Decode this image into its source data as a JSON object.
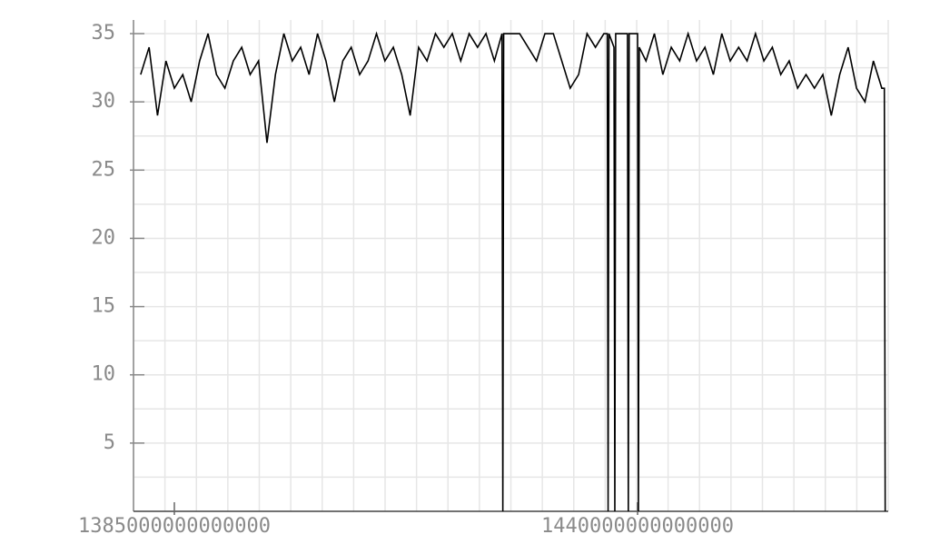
{
  "chart_data": {
    "type": "line",
    "color": "#000000",
    "grid": true,
    "x": [
      1381000000000000,
      1382000000000000,
      1383000000000000,
      1384000000000000,
      1385000000000000,
      1386000000000000,
      1387000000000000,
      1388000000000000,
      1389000000000000,
      1390000000000000,
      1391000000000000,
      1392000000000000,
      1393000000000000,
      1394000000000000,
      1395000000000000,
      1396000000000000,
      1397000000000000,
      1398000000000000,
      1399000000000000,
      1400000000000000,
      1401000000000000,
      1402000000000000,
      1403000000000000,
      1404000000000000,
      1405000000000000,
      1406000000000000,
      1407000000000000,
      1408000000000000,
      1409000000000000,
      1410000000000000,
      1411000000000000,
      1412000000000000,
      1413000000000000,
      1414000000000000,
      1415000000000000,
      1416000000000000,
      1417000000000000,
      1418000000000000,
      1419000000000000,
      1420000000000000,
      1421000000000000,
      1422000000000000,
      1423000000000000,
      1423900000000000,
      1424000000000000,
      1424100000000000,
      1425000000000000,
      1426000000000000,
      1427000000000000,
      1428000000000000,
      1429000000000000,
      1430000000000000,
      1431000000000000,
      1432000000000000,
      1433000000000000,
      1434000000000000,
      1435000000000000,
      1436000000000000,
      1436400000000000,
      1436500000000000,
      1436600000000000,
      1437200000000000,
      1437300000000000,
      1437400000000000,
      1438000000000000,
      1438800000000000,
      1438900000000000,
      1439000000000000,
      1440000000000000,
      1440100000000000,
      1440200000000000,
      1441000000000000,
      1442000000000000,
      1443000000000000,
      1444000000000000,
      1445000000000000,
      1446000000000000,
      1447000000000000,
      1448000000000000,
      1449000000000000,
      1450000000000000,
      1451000000000000,
      1452000000000000,
      1453000000000000,
      1454000000000000,
      1455000000000000,
      1456000000000000,
      1457000000000000,
      1458000000000000,
      1459000000000000,
      1460000000000000,
      1461000000000000,
      1462000000000000,
      1463000000000000,
      1464000000000000,
      1465000000000000,
      1466000000000000,
      1467000000000000,
      1468000000000000,
      1469000000000000,
      1469300000000000,
      1469400000000000
    ],
    "values": [
      32,
      34,
      29,
      33,
      31,
      32,
      30,
      33,
      35,
      32,
      31,
      33,
      34,
      32,
      33,
      27,
      32,
      35,
      33,
      34,
      32,
      35,
      33,
      30,
      33,
      34,
      32,
      33,
      35,
      33,
      34,
      32,
      29,
      34,
      33,
      35,
      34,
      35,
      33,
      35,
      34,
      35,
      33,
      35,
      0,
      35,
      35,
      35,
      34,
      33,
      35,
      35,
      33,
      31,
      32,
      35,
      34,
      35,
      35,
      0,
      35,
      34,
      0,
      35,
      35,
      35,
      0,
      35,
      35,
      0,
      34,
      33,
      35,
      32,
      34,
      33,
      35,
      33,
      34,
      32,
      35,
      33,
      34,
      33,
      35,
      33,
      34,
      32,
      33,
      31,
      32,
      31,
      32,
      29,
      32,
      34,
      31,
      30,
      33,
      31,
      31,
      0
    ],
    "xlim": [
      1380150000000000,
      1469760000000000
    ],
    "xticks": [
      1385000000000000,
      1440000000000000
    ],
    "ylim": [
      0,
      36
    ],
    "yticks": [
      5,
      10,
      15,
      20,
      25,
      30,
      35
    ]
  }
}
